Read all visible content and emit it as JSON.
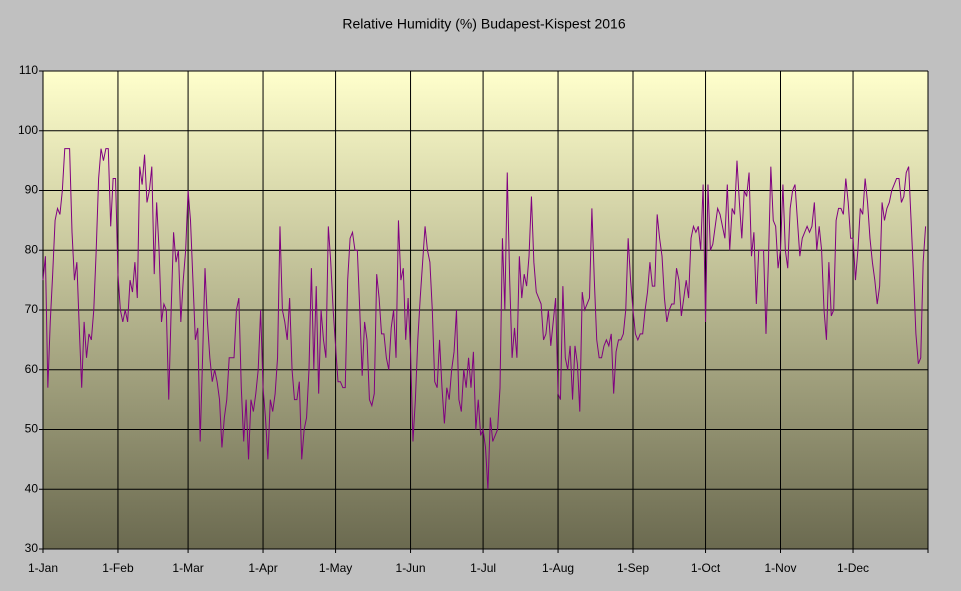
{
  "chart_data": {
    "type": "line",
    "title": "Relative Humidity (%) Budapest-Kispest 2016",
    "categories": [
      "1-Jan",
      null,
      null,
      null,
      null,
      null,
      null,
      null,
      null,
      null,
      null,
      null,
      null,
      null,
      null,
      null,
      null,
      null,
      null,
      null,
      null,
      null,
      null,
      null,
      null,
      null,
      null,
      null,
      null,
      null,
      null,
      "1-Feb",
      null,
      null,
      null,
      null,
      null,
      null,
      null,
      null,
      null,
      null,
      null,
      null,
      null,
      null,
      null,
      null,
      null,
      null,
      null,
      null,
      null,
      null,
      null,
      null,
      null,
      null,
      null,
      null,
      "1-Mar",
      null,
      null,
      null,
      null,
      null,
      null,
      null,
      null,
      null,
      null,
      null,
      null,
      null,
      null,
      null,
      null,
      null,
      null,
      null,
      null,
      null,
      null,
      null,
      null,
      null,
      null,
      null,
      null,
      null,
      null,
      "1-Apr",
      null,
      null,
      null,
      null,
      null,
      null,
      null,
      null,
      null,
      null,
      null,
      null,
      null,
      null,
      null,
      null,
      null,
      null,
      null,
      null,
      null,
      null,
      null,
      null,
      null,
      null,
      null,
      null,
      null,
      "1-May",
      null,
      null,
      null,
      null,
      null,
      null,
      null,
      null,
      null,
      null,
      null,
      null,
      null,
      null,
      null,
      null,
      null,
      null,
      null,
      null,
      null,
      null,
      null,
      null,
      null,
      null,
      null,
      null,
      null,
      null,
      "1-Jun",
      null,
      null,
      null,
      null,
      null,
      null,
      null,
      null,
      null,
      null,
      null,
      null,
      null,
      null,
      null,
      null,
      null,
      null,
      null,
      null,
      null,
      null,
      null,
      null,
      null,
      null,
      null,
      null,
      null,
      "1-Jul",
      null,
      null,
      null,
      null,
      null,
      null,
      null,
      null,
      null,
      null,
      null,
      null,
      null,
      null,
      null,
      null,
      null,
      null,
      null,
      null,
      null,
      null,
      null,
      null,
      null,
      null,
      null,
      null,
      null,
      null,
      "1-Aug",
      null,
      null,
      null,
      null,
      null,
      null,
      null,
      null,
      null,
      null,
      null,
      null,
      null,
      null,
      null,
      null,
      null,
      null,
      null,
      null,
      null,
      null,
      null,
      null,
      null,
      null,
      null,
      null,
      null,
      null,
      "1-Sep",
      null,
      null,
      null,
      null,
      null,
      null,
      null,
      null,
      null,
      null,
      null,
      null,
      null,
      null,
      null,
      null,
      null,
      null,
      null,
      null,
      null,
      null,
      null,
      null,
      null,
      null,
      null,
      null,
      null,
      "1-Oct",
      null,
      null,
      null,
      null,
      null,
      null,
      null,
      null,
      null,
      null,
      null,
      null,
      null,
      null,
      null,
      null,
      null,
      null,
      null,
      null,
      null,
      null,
      null,
      null,
      null,
      null,
      null,
      null,
      null,
      null,
      "1-Nov",
      null,
      null,
      null,
      null,
      null,
      null,
      null,
      null,
      null,
      null,
      null,
      null,
      null,
      null,
      null,
      null,
      null,
      null,
      null,
      null,
      null,
      null,
      null,
      null,
      null,
      null,
      null,
      null,
      null,
      "1-Dec",
      null,
      null,
      null,
      null,
      null,
      null,
      null,
      null,
      null,
      null,
      null,
      null,
      null,
      null,
      null,
      null,
      null,
      null,
      null,
      null,
      null,
      null,
      null,
      null,
      null,
      null,
      null,
      null,
      null,
      null
    ],
    "values": [
      75,
      79,
      57,
      68,
      76,
      85,
      87,
      86,
      90,
      97,
      97,
      97,
      83,
      75,
      78,
      67,
      57,
      68,
      62,
      66,
      65,
      70,
      80,
      92,
      97,
      95,
      97,
      97,
      84,
      92,
      92,
      76,
      70,
      68,
      70,
      68,
      75,
      73,
      78,
      72,
      94,
      91,
      96,
      88,
      90,
      94,
      76,
      88,
      80,
      68,
      71,
      70,
      55,
      70,
      83,
      78,
      80,
      68,
      75,
      80,
      90,
      85,
      75,
      65,
      67,
      48,
      62,
      77,
      68,
      62,
      58,
      60,
      58,
      55,
      47,
      52,
      55,
      62,
      62,
      62,
      70,
      72,
      57,
      48,
      55,
      45,
      55,
      53,
      56,
      60,
      70,
      57,
      52,
      45,
      55,
      53,
      56,
      62,
      84,
      70,
      68,
      65,
      72,
      60,
      55,
      55,
      58,
      45,
      50,
      52,
      60,
      77,
      60,
      74,
      56,
      70,
      65,
      62,
      84,
      78,
      70,
      64,
      58,
      58,
      57,
      57,
      75,
      82,
      83,
      80,
      80,
      70,
      59,
      68,
      65,
      55,
      54,
      56,
      76,
      72,
      66,
      66,
      62,
      60,
      67,
      70,
      62,
      85,
      75,
      77,
      65,
      72,
      63,
      48,
      55,
      65,
      72,
      78,
      84,
      80,
      78,
      70,
      58,
      57,
      65,
      57,
      51,
      57,
      55,
      60,
      63,
      70,
      55,
      53,
      60,
      57,
      62,
      57,
      63,
      50,
      55,
      49,
      50,
      47,
      40,
      52,
      48,
      49,
      50,
      57,
      82,
      70,
      93,
      75,
      62,
      67,
      62,
      79,
      72,
      76,
      74,
      79,
      89,
      78,
      73,
      72,
      71,
      65,
      66,
      70,
      64,
      68,
      72,
      56,
      55,
      74,
      62,
      60,
      64,
      55,
      64,
      61,
      53,
      73,
      70,
      71,
      72,
      87,
      75,
      65,
      62,
      62,
      64,
      65,
      64,
      66,
      56,
      63,
      65,
      65,
      66,
      70,
      82,
      75,
      70,
      66,
      65,
      66,
      66,
      70,
      73,
      78,
      74,
      74,
      86,
      82,
      79,
      72,
      68,
      70,
      71,
      71,
      77,
      75,
      69,
      72,
      75,
      72,
      82,
      84,
      83,
      84,
      80,
      91,
      68,
      91,
      80,
      81,
      84,
      87,
      86,
      84,
      82,
      91,
      80,
      87,
      86,
      95,
      88,
      82,
      90,
      89,
      93,
      79,
      83,
      71,
      80,
      80,
      80,
      66,
      78,
      94,
      85,
      84,
      77,
      80,
      91,
      80,
      77,
      87,
      90,
      91,
      85,
      79,
      82,
      83,
      84,
      83,
      84,
      88,
      80,
      84,
      80,
      70,
      65,
      78,
      69,
      70,
      85,
      87,
      87,
      86,
      92,
      88,
      82,
      82,
      75,
      80,
      87,
      86,
      92,
      88,
      82,
      78,
      75,
      71,
      74,
      88,
      85,
      87,
      88,
      90,
      91,
      92,
      92,
      88,
      89,
      93,
      94,
      85,
      76,
      66,
      61,
      62,
      78,
      84
    ],
    "color": "#800080",
    "ylim": [
      30,
      110
    ],
    "yticks": [
      30,
      40,
      50,
      60,
      70,
      80,
      90,
      100,
      110
    ],
    "grid": true
  }
}
